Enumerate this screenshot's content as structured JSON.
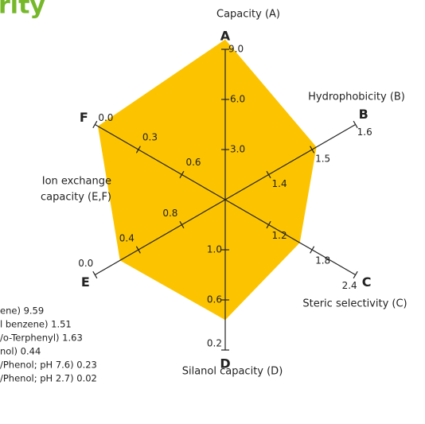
{
  "chart_data": {
    "type": "radar",
    "title": "rity",
    "title_color": "#76b82a",
    "color": "#fcc400",
    "axes": [
      {
        "letter": "A",
        "range": [
          0,
          9.0
        ],
        "ticks": [
          {
            "value": 3.0,
            "label": "3.0"
          },
          {
            "value": 6.0,
            "label": "6.0"
          },
          {
            "value": 9.0,
            "label": "9.0"
          }
        ],
        "value": 9.59
      },
      {
        "letter": "B",
        "range": [
          1.3,
          1.6
        ],
        "ticks": [
          1.4,
          1.5,
          1.6
        ],
        "value": 1.51
      },
      {
        "letter": "C",
        "range": [
          0.6,
          2.4
        ],
        "ticks": [
          1.2,
          1.8,
          2.4
        ],
        "value": 1.63
      },
      {
        "letter": "D",
        "range": [
          1.4,
          0.2
        ],
        "ticks": [
          {
            "value": 1.0,
            "label": "1.0"
          },
          0.6,
          0.2
        ],
        "value": 0.44
      },
      {
        "letter": "E",
        "range": [
          1.2,
          0.0
        ],
        "ticks": [
          0.8,
          0.4,
          {
            "value": 0.0,
            "label": "0.0"
          }
        ],
        "value": 0.23
      },
      {
        "letter": "F",
        "range": [
          0.9,
          0.0
        ],
        "ticks": [
          0.6,
          0.3,
          {
            "value": 0.0,
            "label": "0.0"
          }
        ],
        "value": 0.02
      }
    ],
    "axis_titles": [
      [
        "Capacity (A)"
      ],
      [
        "Hydrophobicity (B)"
      ],
      [
        "Steric selectivity (C)"
      ],
      [
        "Silanol capacity (D)"
      ],
      [
        "Ion exchange",
        "capacity (E,F)"
      ]
    ],
    "notes": [
      "ene) 9.59",
      "l benzene) 1.51",
      "/o-Terphenyl) 1.63",
      "nol) 0.44",
      "/Phenol; pH 7.6) 0.23",
      "/Phenol; pH 2.7) 0.02"
    ]
  }
}
